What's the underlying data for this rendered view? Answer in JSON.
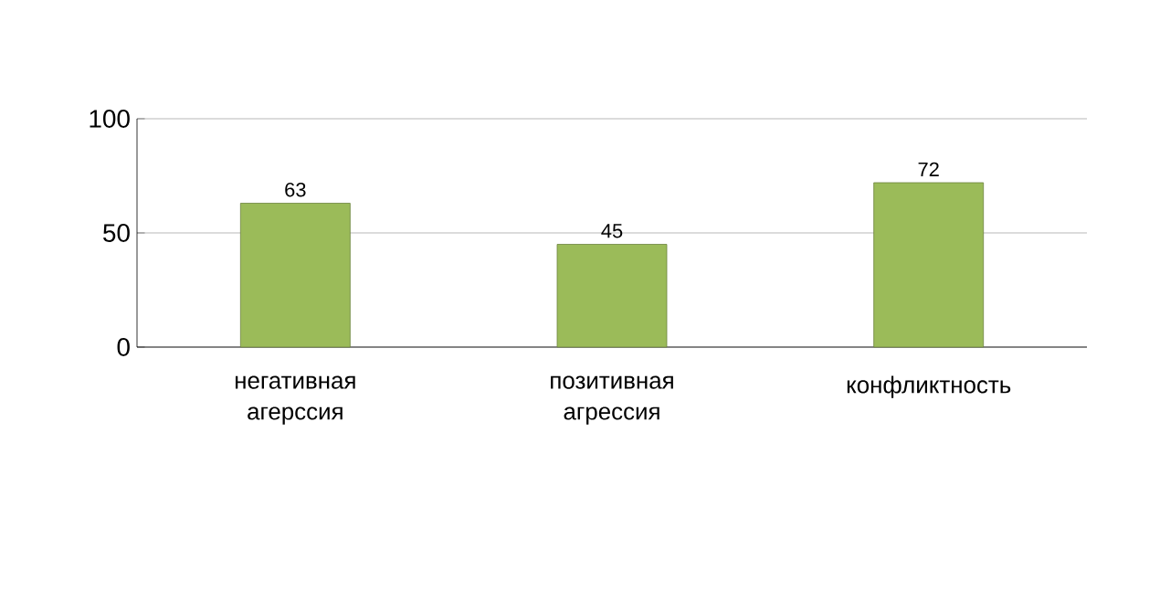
{
  "chart_data": {
    "type": "bar",
    "categories": [
      "негативная агерссия",
      "позитивная агрессия",
      "конфликтность"
    ],
    "values": [
      63,
      45,
      72
    ],
    "color": "#9bbb59",
    "ylim": [
      0,
      100
    ],
    "yticks": [
      0,
      50,
      100
    ],
    "grid": "y",
    "data_labels": true
  }
}
